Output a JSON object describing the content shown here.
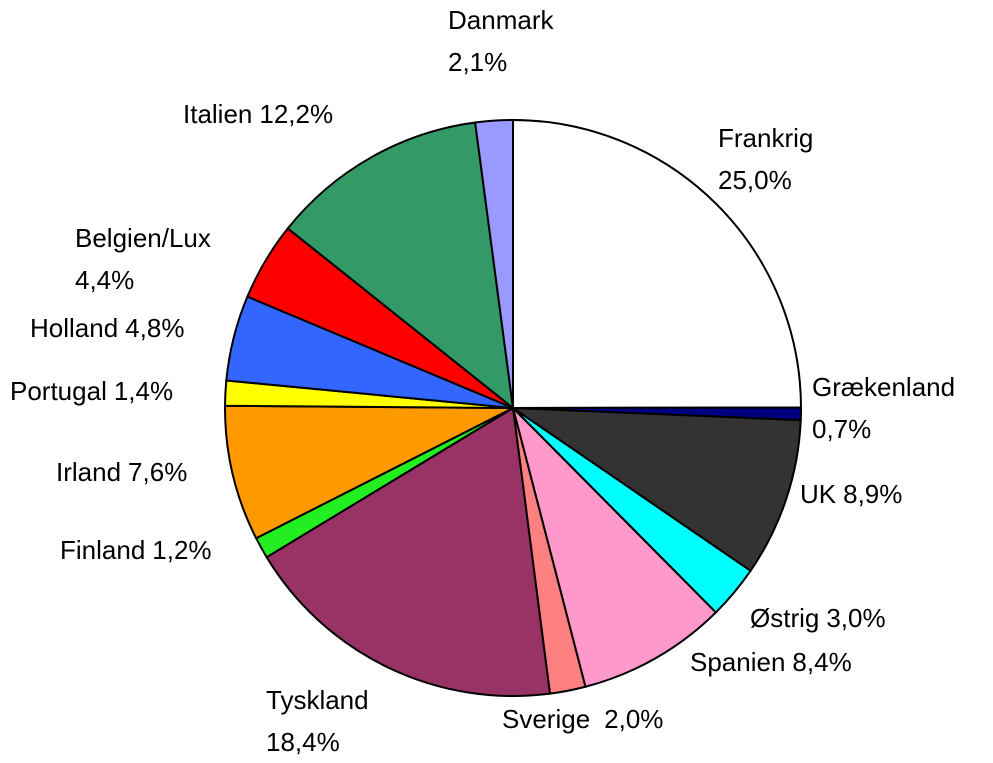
{
  "chart_data": {
    "type": "pie",
    "categories": [
      "Frankrig",
      "Grækenland",
      "UK",
      "Østrig",
      "Spanien",
      "Sverige",
      "Tyskland",
      "Finland",
      "Irland",
      "Portugal",
      "Holland",
      "Belgien/Lux",
      "Italien",
      "Danmark"
    ],
    "values": [
      25.0,
      0.7,
      8.9,
      3.0,
      8.4,
      2.0,
      18.4,
      1.2,
      7.6,
      1.4,
      4.8,
      4.4,
      12.2,
      2.1
    ],
    "value_labels": [
      "25,0%",
      "0,7%",
      "8,9%",
      "3,0%",
      "8,4%",
      "2,0%",
      "18,4%",
      "1,2%",
      "7,6%",
      "1,4%",
      "4,8%",
      "4,4%",
      "12,2%",
      "2,1%"
    ],
    "colors": [
      "#ffffff",
      "#000080",
      "#333333",
      "#00ffff",
      "#ff99cc",
      "#ff8080",
      "#993366",
      "#22ee22",
      "#ff9900",
      "#ffff00",
      "#3366ff",
      "#ff0000",
      "#339966",
      "#9999ff"
    ]
  }
}
